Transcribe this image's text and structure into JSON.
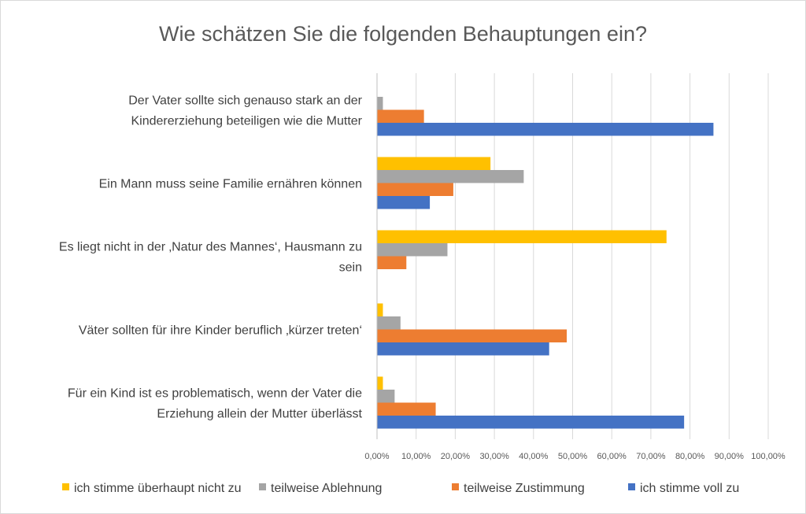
{
  "chart_data": {
    "type": "bar",
    "orientation": "horizontal",
    "title": "Wie schätzen Sie die folgenden Behauptungen ein?",
    "categories": [
      [
        "Der Vater sollte sich genauso stark an der",
        "Kindererziehung beteiligen wie die Mutter"
      ],
      [
        "Ein Mann muss seine Familie ernähren können"
      ],
      [
        "Es liegt nicht in der ‚Natur des Mannes‘, Hausmann zu",
        "sein"
      ],
      [
        "Väter sollten für ihre Kinder beruflich ‚kürzer treten‘"
      ],
      [
        "Für ein Kind ist es problematisch, wenn der Vater die",
        "Erziehung allein der Mutter überlässt"
      ]
    ],
    "series": [
      {
        "name": "ich stimme überhaupt nicht zu",
        "color": "#FFC000",
        "values": [
          0.0,
          29.0,
          74.0,
          1.5,
          1.5
        ]
      },
      {
        "name": "teilweise Ablehnung",
        "color": "#A5A5A5",
        "values": [
          1.5,
          37.5,
          18.0,
          6.0,
          4.5
        ]
      },
      {
        "name": "teilweise Zustimmung",
        "color": "#ED7D31",
        "values": [
          12.0,
          19.5,
          7.5,
          48.5,
          15.0
        ]
      },
      {
        "name": "ich stimme voll zu",
        "color": "#4472C4",
        "values": [
          86.0,
          13.5,
          0.0,
          44.0,
          78.5
        ]
      }
    ],
    "xlim": [
      0,
      100
    ],
    "xticks": [
      "0,00%",
      "10,00%",
      "20,00%",
      "30,00%",
      "40,00%",
      "50,00%",
      "60,00%",
      "70,00%",
      "80,00%",
      "90,00%",
      "100,00%"
    ],
    "grid": true,
    "legend_position": "bottom"
  }
}
